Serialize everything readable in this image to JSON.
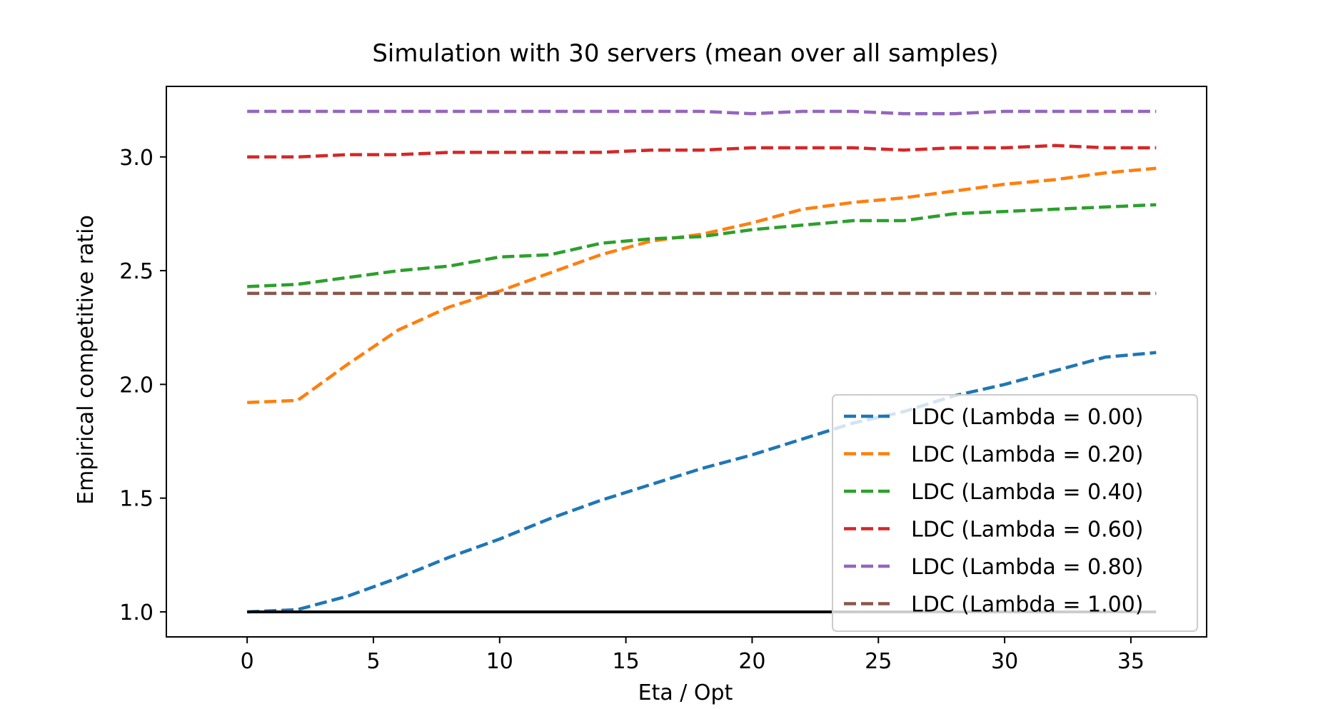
{
  "chart_data": {
    "type": "line",
    "title": "Simulation with 30 servers (mean over all samples)",
    "xlabel": "Eta / Opt",
    "ylabel": "Empirical competitive ratio",
    "xlim": [
      -3.2,
      38.0
    ],
    "ylim": [
      0.89,
      3.31
    ],
    "xticks": [
      0,
      5,
      10,
      15,
      20,
      25,
      30,
      35
    ],
    "xtick_labels": [
      "0",
      "5",
      "10",
      "15",
      "20",
      "25",
      "30",
      "35"
    ],
    "yticks": [
      1.0,
      1.5,
      2.0,
      2.5,
      3.0
    ],
    "ytick_labels": [
      "1.0",
      "1.5",
      "2.0",
      "2.5",
      "3.0"
    ],
    "grid": false,
    "legend_position": "lower-right",
    "x": [
      0,
      2,
      4,
      6,
      8,
      10,
      12,
      14,
      16,
      18,
      20,
      22,
      24,
      26,
      28,
      30,
      32,
      34,
      36
    ],
    "series": [
      {
        "name": "LDC (Lambda = 0.00)",
        "color": "#1f77b4",
        "dashed": true,
        "values": [
          1.0,
          1.01,
          1.07,
          1.15,
          1.24,
          1.32,
          1.41,
          1.49,
          1.56,
          1.63,
          1.69,
          1.76,
          1.83,
          1.88,
          1.95,
          2.0,
          2.06,
          2.12,
          2.14
        ]
      },
      {
        "name": "LDC (Lambda = 0.20)",
        "color": "#ff7f0e",
        "dashed": true,
        "values": [
          1.92,
          1.93,
          2.09,
          2.24,
          2.34,
          2.41,
          2.49,
          2.57,
          2.63,
          2.66,
          2.71,
          2.77,
          2.8,
          2.82,
          2.85,
          2.88,
          2.9,
          2.93,
          2.95
        ]
      },
      {
        "name": "LDC (Lambda = 0.40)",
        "color": "#2ca02c",
        "dashed": true,
        "values": [
          2.43,
          2.44,
          2.47,
          2.5,
          2.52,
          2.56,
          2.57,
          2.62,
          2.64,
          2.65,
          2.68,
          2.7,
          2.72,
          2.72,
          2.75,
          2.76,
          2.77,
          2.78,
          2.79
        ]
      },
      {
        "name": "LDC (Lambda = 0.60)",
        "color": "#d62728",
        "dashed": true,
        "values": [
          3.0,
          3.0,
          3.01,
          3.01,
          3.02,
          3.02,
          3.02,
          3.02,
          3.03,
          3.03,
          3.04,
          3.04,
          3.04,
          3.03,
          3.04,
          3.04,
          3.05,
          3.04,
          3.04
        ]
      },
      {
        "name": "LDC (Lambda = 0.80)",
        "color": "#9467bd",
        "dashed": true,
        "values": [
          3.2,
          3.2,
          3.2,
          3.2,
          3.2,
          3.2,
          3.2,
          3.2,
          3.2,
          3.2,
          3.19,
          3.2,
          3.2,
          3.19,
          3.19,
          3.2,
          3.2,
          3.2,
          3.2
        ]
      },
      {
        "name": "LDC (Lambda = 1.00)",
        "color": "#8c564b",
        "dashed": true,
        "values": [
          2.4,
          2.4,
          2.4,
          2.4,
          2.4,
          2.4,
          2.4,
          2.4,
          2.4,
          2.4,
          2.4,
          2.4,
          2.4,
          2.4,
          2.4,
          2.4,
          2.4,
          2.4,
          2.4
        ]
      },
      {
        "color": "#000000",
        "dashed": false,
        "values": [
          1.0,
          1.0,
          1.0,
          1.0,
          1.0,
          1.0,
          1.0,
          1.0,
          1.0,
          1.0,
          1.0,
          1.0,
          1.0,
          1.0,
          1.0,
          1.0,
          1.0,
          1.0,
          1.0
        ]
      }
    ]
  }
}
